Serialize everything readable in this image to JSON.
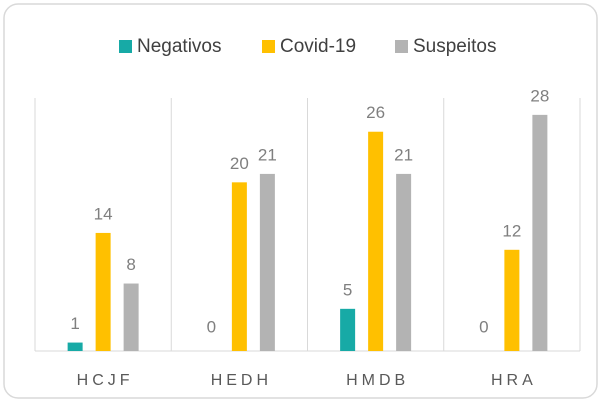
{
  "chart_data": {
    "type": "bar",
    "categories": [
      "HCJF",
      "HEDH",
      "HMDB",
      "HRA"
    ],
    "series": [
      {
        "name": "Negativos",
        "color": "#17aaa6",
        "values": [
          1,
          0,
          5,
          0
        ]
      },
      {
        "name": "Covid-19",
        "color": "#ffc000",
        "values": [
          14,
          20,
          26,
          12
        ]
      },
      {
        "name": "Suspeitos",
        "color": "#b3b3b3",
        "values": [
          8,
          21,
          21,
          28
        ]
      }
    ],
    "ylim": [
      0,
      30
    ],
    "legend": "top",
    "grid": false
  }
}
